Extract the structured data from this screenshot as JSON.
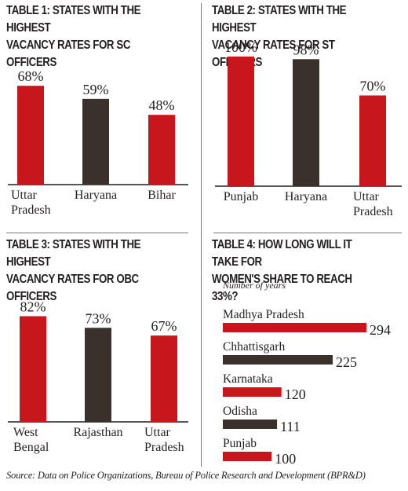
{
  "colors": {
    "red": "#c8161d",
    "dark": "#3a302c",
    "axis": "#231f20"
  },
  "chart_data": [
    {
      "id": "t1",
      "type": "bar",
      "title": "TABLE 1: STATES WITH THE HIGHEST VACANCY RATES FOR SC OFFICERS",
      "categories": [
        "Uttar\nPradesh",
        "Haryana",
        "Bihar"
      ],
      "values": [
        68,
        59,
        48
      ],
      "value_labels": [
        "68%",
        "59%",
        "48%"
      ],
      "colors": [
        "red",
        "dark",
        "red"
      ],
      "ylim": [
        0,
        100
      ]
    },
    {
      "id": "t2",
      "type": "bar",
      "title": "TABLE 2: STATES WITH THE HIGHEST VACANCY RATES FOR ST OFFICERS",
      "categories": [
        "Punjab",
        "Haryana",
        "Uttar\nPradesh"
      ],
      "values": [
        100,
        98,
        70
      ],
      "value_labels": [
        "100%",
        "98%",
        "70%"
      ],
      "colors": [
        "red",
        "dark",
        "red"
      ],
      "ylim": [
        0,
        100
      ]
    },
    {
      "id": "t3",
      "type": "bar",
      "title": "TABLE 3: STATES WITH THE HIGHEST VACANCY RATES FOR OBC OFFICERS",
      "categories": [
        "West\nBengal",
        "Rajasthan",
        "Uttar\nPradesh"
      ],
      "values": [
        82,
        73,
        67
      ],
      "value_labels": [
        "82%",
        "73%",
        "67%"
      ],
      "colors": [
        "red",
        "dark",
        "red"
      ],
      "ylim": [
        0,
        100
      ]
    },
    {
      "id": "t4",
      "type": "bar",
      "orientation": "horizontal",
      "title": "TABLE 4: HOW LONG WILL IT TAKE FOR WOMEN'S SHARE TO REACH 33%?",
      "subtitle": "Number of years",
      "categories": [
        "Madhya Pradesh",
        "Chhattisgarh",
        "Karnataka",
        "Odisha",
        "Punjab"
      ],
      "values": [
        294,
        225,
        120,
        111,
        100
      ],
      "value_labels": [
        "294",
        "225",
        "120",
        "111",
        "100"
      ],
      "colors": [
        "red",
        "dark",
        "red",
        "dark",
        "red"
      ]
    }
  ],
  "source": "Source: Data on Police Organizations, Bureau of Police Research and Development (BPR&D)"
}
